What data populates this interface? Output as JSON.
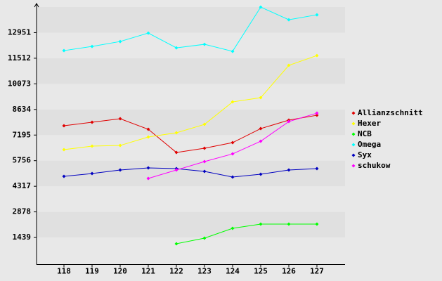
{
  "chart_data": {
    "type": "line",
    "categories": [
      "118",
      "119",
      "120",
      "121",
      "122",
      "123",
      "124",
      "125",
      "126",
      "127"
    ],
    "ylim": [
      0,
      14390
    ],
    "yticks": [
      1439,
      2878,
      4317,
      5756,
      7195,
      8634,
      10073,
      11512,
      12951
    ],
    "legend": "right",
    "series": [
      {
        "name": "Allianzschnitt",
        "color": "#e00000",
        "values": [
          7716,
          7914,
          8111,
          7519,
          6216,
          6453,
          6769,
          7558,
          8032,
          8308
        ]
      },
      {
        "name": "Hexer",
        "color": "#ffff00",
        "values": [
          6374,
          6572,
          6611,
          7085,
          7322,
          7795,
          9058,
          9295,
          11111,
          11663
        ]
      },
      {
        "name": "NCB",
        "color": "#00ff00",
        "values": [
          null,
          null,
          null,
          null,
          1085,
          1401,
          1954,
          2191,
          2191,
          2191
        ]
      },
      {
        "name": "Omega",
        "color": "#00ffff",
        "values": [
          11940,
          12176,
          12453,
          12926,
          12097,
          12295,
          11900,
          14387,
          13676,
          13953
        ]
      },
      {
        "name": "Syx",
        "color": "#0000c0",
        "values": [
          4875,
          5032,
          5230,
          5348,
          5309,
          5151,
          4835,
          4993,
          5230,
          5309
        ]
      },
      {
        "name": "schukow",
        "color": "#ff00ff",
        "values": [
          null,
          null,
          null,
          4756,
          5230,
          5703,
          6137,
          6848,
          7953,
          8427
        ]
      }
    ]
  }
}
